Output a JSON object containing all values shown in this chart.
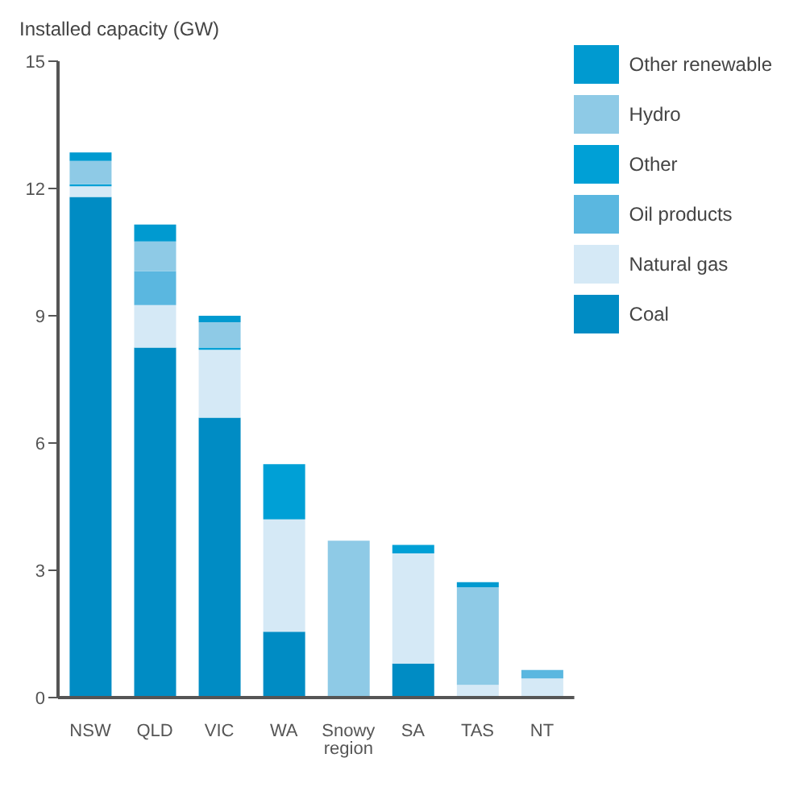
{
  "chart_data": {
    "type": "bar",
    "stacked": true,
    "ylabel": "Installed capacity (GW)",
    "categories": [
      "NSW",
      "QLD",
      "VIC",
      "WA",
      "Snowy region",
      "SA",
      "TAS",
      "NT"
    ],
    "series": [
      {
        "name": "Coal",
        "color": "#008cc4",
        "values": [
          11.8,
          8.25,
          6.6,
          1.55,
          0,
          0.8,
          0,
          0
        ]
      },
      {
        "name": "Natural gas",
        "color": "#d5e9f6",
        "values": [
          0.25,
          1.0,
          1.6,
          2.65,
          0,
          2.6,
          0.3,
          0.45
        ]
      },
      {
        "name": "Oil products",
        "color": "#5ab7e0",
        "values": [
          0,
          0.8,
          0,
          0,
          0,
          0,
          0,
          0.2
        ]
      },
      {
        "name": "Other",
        "color": "#00a0d6",
        "values": [
          0.05,
          0,
          0.05,
          1.3,
          0,
          0.2,
          0,
          0
        ]
      },
      {
        "name": "Hydro",
        "color": "#8ecae6",
        "values": [
          0.55,
          0.7,
          0.6,
          0,
          3.7,
          0,
          2.3,
          0
        ]
      },
      {
        "name": "Other renewable",
        "color": "#009ad0",
        "values": [
          0.2,
          0.4,
          0.15,
          0,
          0,
          0,
          0.12,
          0
        ]
      }
    ],
    "ylim": [
      0,
      15
    ],
    "yticks": [
      0,
      3,
      6,
      9,
      12,
      15
    ],
    "grid": false,
    "legend": "top right"
  }
}
